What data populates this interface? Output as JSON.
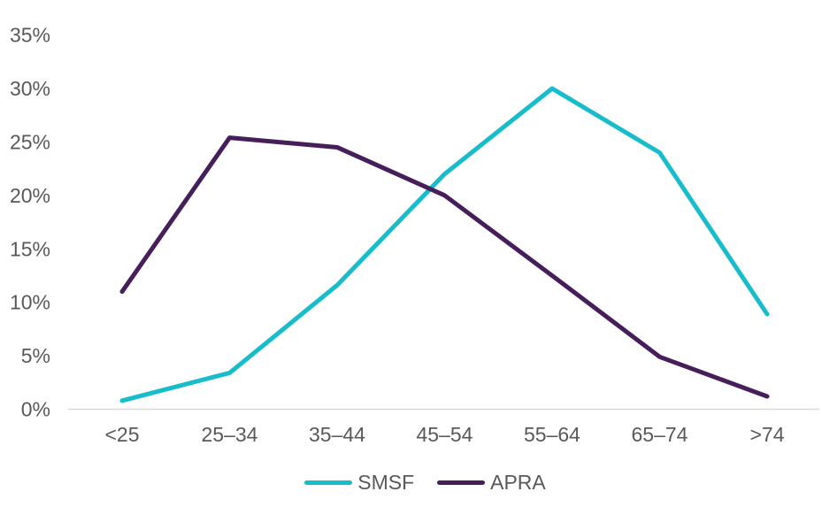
{
  "chart_data": {
    "type": "line",
    "title": "",
    "xlabel": "",
    "ylabel": "",
    "categories": [
      "<25",
      "25–34",
      "35–44",
      "45–54",
      "55–64",
      "65–74",
      ">74"
    ],
    "series": [
      {
        "name": "SMSF",
        "color": "#17BDCB",
        "values": [
          0.8,
          3.4,
          11.6,
          22.0,
          30.0,
          24.0,
          8.9
        ]
      },
      {
        "name": "APRA",
        "color": "#461E5A",
        "values": [
          11.0,
          25.4,
          24.5,
          20.0,
          12.5,
          4.9,
          1.2
        ]
      }
    ],
    "yticks": [
      "0%",
      "5%",
      "10%",
      "15%",
      "20%",
      "25%",
      "30%",
      "35%"
    ],
    "ylim": [
      0,
      35
    ],
    "ytick_step": 5,
    "grid": false,
    "legend_position": "bottom",
    "axis_line_color": "#D9D9D9",
    "text_color": "#595959",
    "background": "#FFFFFF"
  }
}
